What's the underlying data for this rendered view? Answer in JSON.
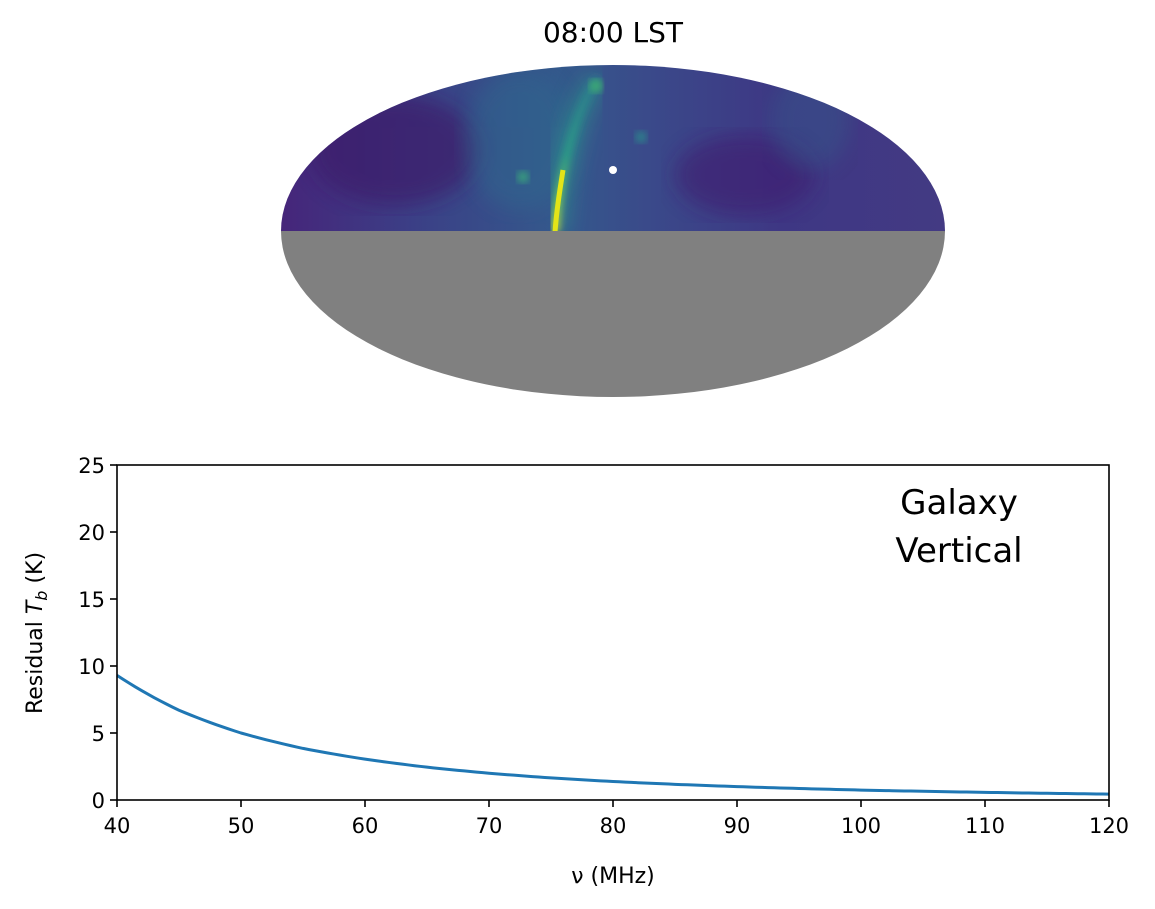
{
  "sky_map": {
    "title": "08:00 LST",
    "projection": "Mollweide",
    "colormap": "viridis",
    "masked_color": "#808080",
    "marker_color": "#ffffff"
  },
  "chart_data": {
    "type": "line",
    "series": [
      {
        "name": "residual",
        "color": "#1f77b4",
        "x": [
          40,
          45,
          50,
          55,
          60,
          65,
          70,
          75,
          80,
          85,
          90,
          95,
          100,
          105,
          110,
          115,
          120
        ],
        "values": [
          9.3,
          6.7,
          5.0,
          3.85,
          3.05,
          2.45,
          2.0,
          1.65,
          1.38,
          1.17,
          1.0,
          0.86,
          0.74,
          0.65,
          0.57,
          0.5,
          0.44
        ]
      }
    ],
    "xlabel": "ν (MHz)",
    "ylabel_prefix": "Residual ",
    "ylabel_symbol": "T",
    "ylabel_subscript": "b",
    "ylabel_suffix": " (K)",
    "xlim": [
      40,
      120
    ],
    "ylim": [
      0,
      25
    ],
    "xticks": [
      40,
      50,
      60,
      70,
      80,
      90,
      100,
      110,
      120
    ],
    "yticks": [
      0,
      5,
      10,
      15,
      20,
      25
    ],
    "grid": false,
    "annotation": [
      "Galaxy",
      "Vertical"
    ]
  }
}
